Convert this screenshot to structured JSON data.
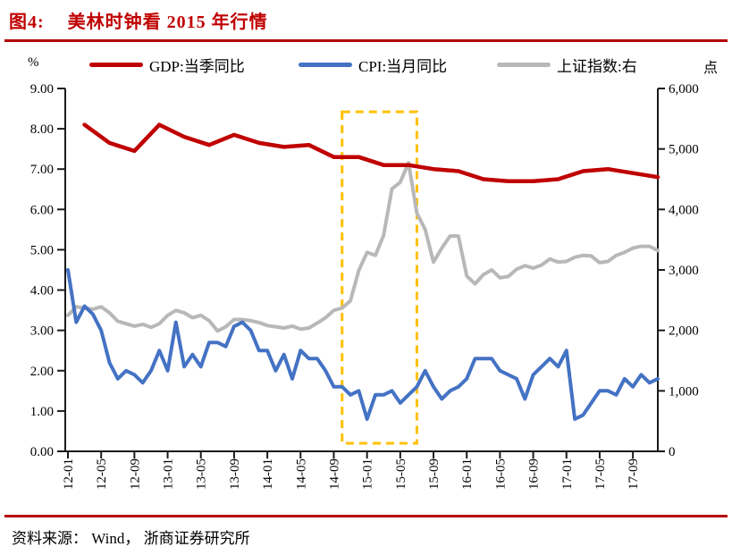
{
  "title": {
    "prefix": "图4:",
    "text": "美林时钟看 2015 年行情"
  },
  "footer": {
    "text": "资料来源： Wind， 浙商证券研究所"
  },
  "colors": {
    "accent_red": "#C00000",
    "gdp_line": "#C00000",
    "cpi_line": "#4472C4",
    "sse_line": "#B8B8B8",
    "highlight_box": "#FFC000",
    "axis": "#1a1a1a"
  },
  "legend": [
    {
      "label": "GDP:当季同比",
      "color": "#C00000"
    },
    {
      "label": "CPI:当月同比",
      "color": "#4472C4"
    },
    {
      "label": "上证指数:右",
      "color": "#B8B8B8"
    }
  ],
  "chart_data": {
    "type": "line",
    "title": "美林时钟看 2015 年行情",
    "x_range": {
      "start": "2012-01",
      "end": "2017-12"
    },
    "x_tick_labels": [
      "12-01",
      "12-05",
      "12-09",
      "13-01",
      "13-05",
      "13-09",
      "14-01",
      "14-05",
      "14-09",
      "15-01",
      "15-05",
      "15-09",
      "16-01",
      "16-05",
      "16-09",
      "17-01",
      "17-05",
      "17-09"
    ],
    "left_axis": {
      "unit": "%",
      "min": 0,
      "max": 9,
      "ticks": [
        "9.00",
        "8.00",
        "7.00",
        "6.00",
        "5.00",
        "4.00",
        "3.00",
        "2.00",
        "1.00",
        "0.00"
      ]
    },
    "right_axis": {
      "unit": "点",
      "min": 0,
      "max": 6000,
      "ticks": [
        "6,000",
        "5,000",
        "4,000",
        "3,000",
        "2,000",
        "1,000",
        "0"
      ]
    },
    "grid": false,
    "legend_position": "top",
    "series": [
      {
        "name": "GDP:当季同比",
        "axis": "left",
        "color": "#C00000",
        "frequency": "quarterly",
        "quarters": [
          "2012Q1",
          "2012Q2",
          "2012Q3",
          "2012Q4",
          "2013Q1",
          "2013Q2",
          "2013Q3",
          "2013Q4",
          "2014Q1",
          "2014Q2",
          "2014Q3",
          "2014Q4",
          "2015Q1",
          "2015Q2",
          "2015Q3",
          "2015Q4",
          "2016Q1",
          "2016Q2",
          "2016Q3",
          "2016Q4",
          "2017Q1",
          "2017Q2",
          "2017Q3",
          "2017Q4"
        ],
        "month_index": [
          2,
          5,
          8,
          11,
          14,
          17,
          20,
          23,
          26,
          29,
          32,
          35,
          38,
          41,
          44,
          47,
          50,
          53,
          56,
          59,
          62,
          65,
          68,
          71
        ],
        "values": [
          8.1,
          7.65,
          7.45,
          8.1,
          7.8,
          7.6,
          7.85,
          7.65,
          7.55,
          7.6,
          7.3,
          7.3,
          7.1,
          7.1,
          7.0,
          6.95,
          6.75,
          6.7,
          6.7,
          6.75,
          6.95,
          7.0,
          6.9,
          6.8
        ]
      },
      {
        "name": "CPI:当月同比",
        "axis": "left",
        "color": "#4472C4",
        "frequency": "monthly",
        "values": [
          4.5,
          3.2,
          3.6,
          3.4,
          3.0,
          2.2,
          1.8,
          2.0,
          1.9,
          1.7,
          2.0,
          2.5,
          2.0,
          3.2,
          2.1,
          2.4,
          2.1,
          2.7,
          2.7,
          2.6,
          3.1,
          3.2,
          3.0,
          2.5,
          2.5,
          2.0,
          2.4,
          1.8,
          2.5,
          2.3,
          2.3,
          2.0,
          1.6,
          1.6,
          1.4,
          1.5,
          0.8,
          1.4,
          1.4,
          1.5,
          1.2,
          1.4,
          1.6,
          2.0,
          1.6,
          1.3,
          1.5,
          1.6,
          1.8,
          2.3,
          2.3,
          2.3,
          2.0,
          1.9,
          1.8,
          1.3,
          1.9,
          2.1,
          2.3,
          2.1,
          2.5,
          0.8,
          0.9,
          1.2,
          1.5,
          1.5,
          1.4,
          1.8,
          1.6,
          1.9,
          1.7,
          1.8
        ]
      },
      {
        "name": "上证指数:右",
        "axis": "right",
        "color": "#B8B8B8",
        "frequency": "monthly",
        "values": [
          2250,
          2390,
          2370,
          2350,
          2390,
          2290,
          2150,
          2110,
          2070,
          2100,
          2050,
          2110,
          2250,
          2330,
          2290,
          2210,
          2250,
          2160,
          1990,
          2060,
          2180,
          2180,
          2160,
          2130,
          2080,
          2060,
          2040,
          2070,
          2020,
          2040,
          2120,
          2210,
          2330,
          2370,
          2490,
          2990,
          3290,
          3240,
          3570,
          4340,
          4450,
          4770,
          3940,
          3670,
          3130,
          3360,
          3560,
          3560,
          2900,
          2770,
          2920,
          3000,
          2870,
          2890,
          3010,
          3070,
          3030,
          3080,
          3180,
          3130,
          3140,
          3210,
          3240,
          3230,
          3120,
          3140,
          3240,
          3290,
          3360,
          3390,
          3390,
          3320
        ]
      }
    ],
    "highlight_box": {
      "color": "#FFC000",
      "from_month": "2014-10",
      "to_month": "2015-07",
      "from_index": 33,
      "to_index": 42,
      "top_value_pct": 8.42,
      "bottom_value_pct": 0.2
    }
  }
}
